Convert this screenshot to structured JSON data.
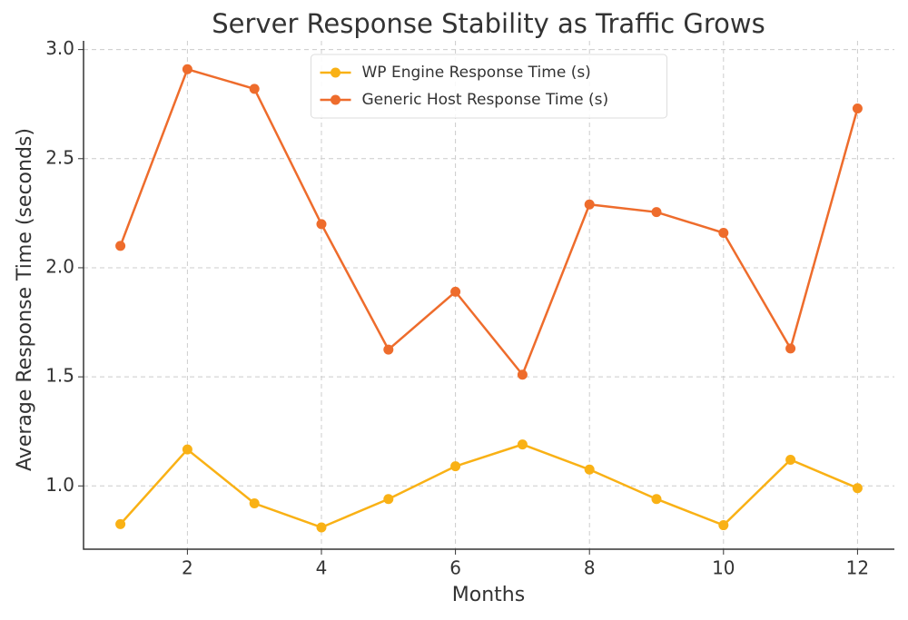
{
  "chart_data": {
    "type": "line",
    "title": "Server Response Stability as Traffic Grows",
    "xlabel": "Months",
    "ylabel": "Average Response Time (seconds)",
    "x": [
      1,
      2,
      3,
      4,
      5,
      6,
      7,
      8,
      9,
      10,
      11,
      12
    ],
    "series": [
      {
        "name": "WP Engine Response Time (s)",
        "color": "#f9b115",
        "values": [
          0.825,
          1.167,
          0.92,
          0.81,
          0.94,
          1.09,
          1.19,
          1.075,
          0.94,
          0.82,
          1.12,
          0.99
        ]
      },
      {
        "name": "Generic Host Response Time (s)",
        "color": "#ee6c2c",
        "values": [
          2.1,
          2.91,
          2.82,
          2.2,
          1.625,
          1.89,
          1.51,
          2.29,
          2.255,
          2.16,
          1.63,
          2.73
        ]
      }
    ],
    "xlim": [
      0.45,
      12.55
    ],
    "ylim": [
      0.71,
      3.04
    ],
    "xticks": [
      2,
      4,
      6,
      8,
      10,
      12
    ],
    "yticks": [
      {
        "value": 1.0,
        "label": "1.0"
      },
      {
        "value": 1.5,
        "label": "1.5"
      },
      {
        "value": 2.0,
        "label": "2.0"
      },
      {
        "value": 2.5,
        "label": "2.5"
      },
      {
        "value": 3.0,
        "label": "3.0"
      }
    ],
    "grid": true,
    "legend": "upper center"
  }
}
